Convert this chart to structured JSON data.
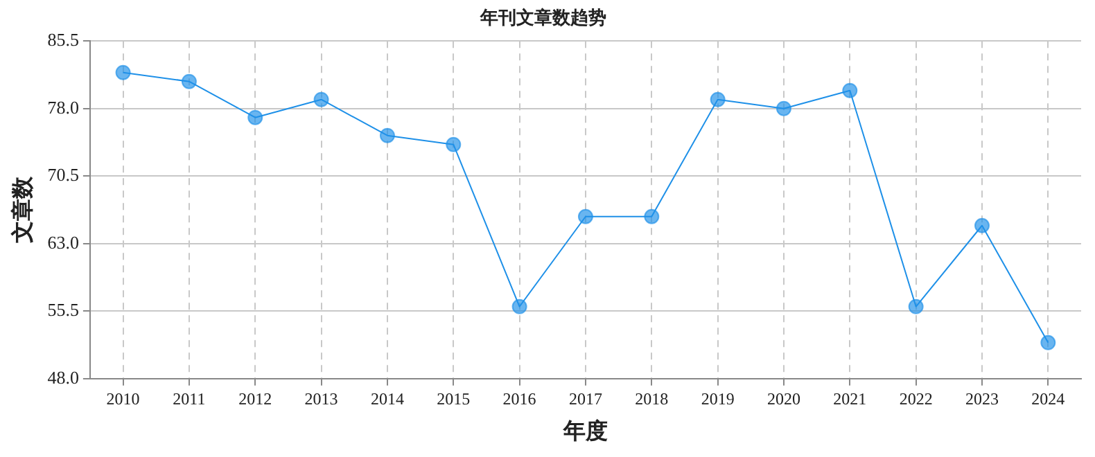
{
  "chart_data": {
    "type": "line",
    "title": "年刊文章数趋势",
    "xlabel": "年度",
    "ylabel": "文章数",
    "categories": [
      "2010",
      "2011",
      "2012",
      "2013",
      "2014",
      "2015",
      "2016",
      "2017",
      "2018",
      "2019",
      "2020",
      "2021",
      "2022",
      "2023",
      "2024"
    ],
    "series": [
      {
        "color": "#1e90e8",
        "values": [
          82,
          81,
          77,
          79,
          75,
          74,
          56,
          66,
          66,
          79,
          78,
          80,
          56,
          65,
          52
        ]
      }
    ],
    "ylim": [
      48.0,
      85.5
    ],
    "yticks": [
      {
        "value": 48,
        "label": "48.0"
      },
      {
        "value": 55.5,
        "label": "55.5"
      },
      {
        "value": 63,
        "label": "63.0"
      },
      {
        "value": 70.5,
        "label": "70.5"
      },
      {
        "value": 78,
        "label": "78.0"
      },
      {
        "value": 85.5,
        "label": "85.5"
      }
    ],
    "grid": true,
    "legend": false,
    "marker": "circle",
    "line_style": "solid"
  }
}
